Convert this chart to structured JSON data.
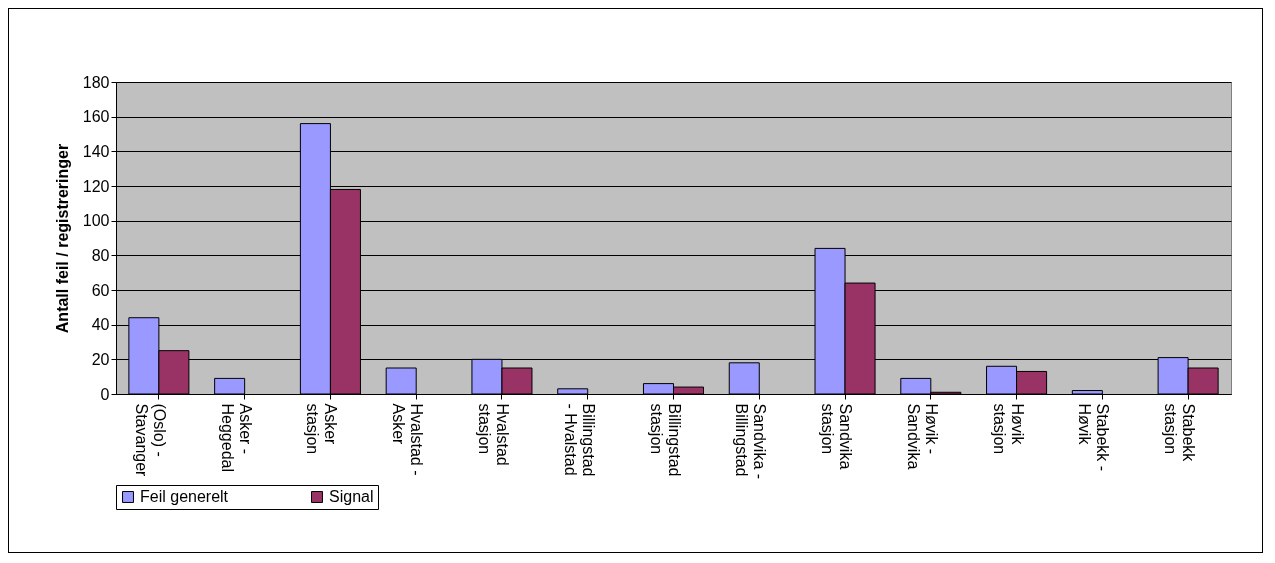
{
  "chart_data": {
    "type": "bar",
    "ylabel": "Antall feil / registreringer",
    "categories": [
      "(Oslo) - Stavanger",
      "Asker - Heggedal",
      "Asker stasjon",
      "Hvalstad - Asker",
      "Hvalstad stasjon",
      "Billingstad - Hvalstad",
      "Billingstad stasjon",
      "Sandvika - Billingstad",
      "Sandvika stasjon",
      "Høvik - Sandvika",
      "Høvik stasjon",
      "Stabekk - Høvik",
      "Stabekk stasjon"
    ],
    "series": [
      {
        "name": "Feil generelt",
        "color": "#9999ff",
        "values": [
          44,
          9,
          156,
          15,
          20,
          3,
          6,
          18,
          84,
          9,
          16,
          2,
          21
        ]
      },
      {
        "name": "Signal",
        "color": "#993366",
        "values": [
          25,
          null,
          118,
          null,
          15,
          null,
          4,
          null,
          64,
          1,
          13,
          null,
          15
        ]
      }
    ],
    "ylim": [
      0,
      180
    ],
    "yticks": [
      0,
      20,
      40,
      60,
      80,
      100,
      120,
      140,
      160,
      180
    ],
    "grid": "y",
    "legend": "bottom"
  }
}
